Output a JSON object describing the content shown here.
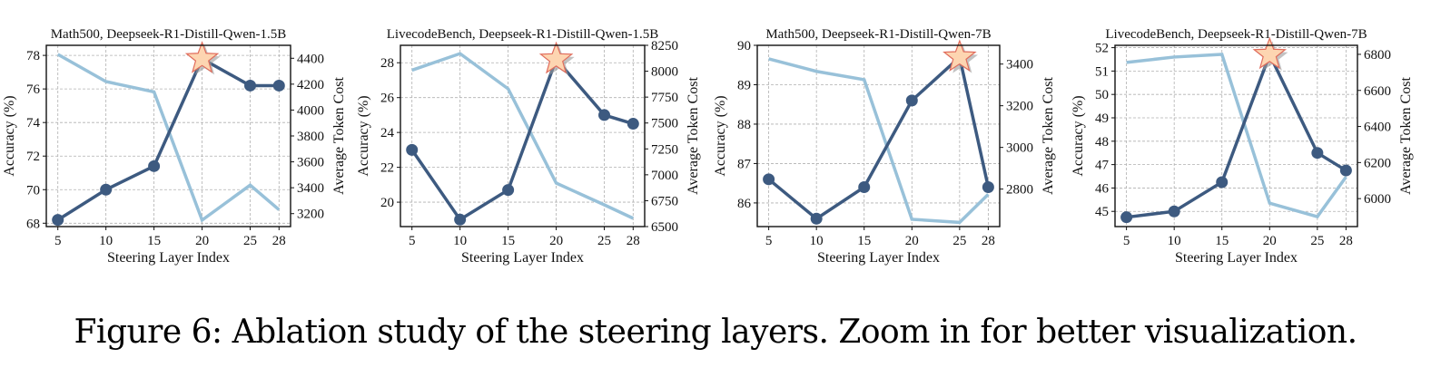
{
  "caption": "Figure 6: Ablation study of the steering layers. Zoom in for better visualization.",
  "colors": {
    "accuracy_line": "#3d5a80",
    "token_line": "#98c1d9",
    "star_fill": "#fdd5b1",
    "star_stroke": "#e06c5c",
    "grid": "#b0b0b0"
  },
  "chart_data": [
    {
      "type": "line",
      "title": "Math500, Deepseek-R1-Distill-Qwen-1.5B",
      "xlabel": "Steering Layer Index",
      "ylabel": "Accuracy (%)",
      "y2label": "Average Token Cost",
      "x": [
        5,
        10,
        15,
        20,
        25,
        28
      ],
      "xticks": [
        "5",
        "10",
        "15",
        "20",
        "25",
        "28"
      ],
      "series": [
        {
          "name": "Accuracy",
          "axis": "left",
          "values": [
            68.2,
            70.0,
            71.4,
            77.8,
            76.2,
            76.2
          ]
        },
        {
          "name": "Average Token Cost",
          "axis": "right",
          "values": [
            4430,
            4220,
            4140,
            3150,
            3420,
            3230
          ]
        }
      ],
      "ylim": [
        67.8,
        78.6
      ],
      "yticks": [
        68,
        70,
        72,
        74,
        76,
        78
      ],
      "y2lim": [
        3100,
        4500
      ],
      "y2ticks": [
        3200,
        3400,
        3600,
        3800,
        4000,
        4200,
        4400
      ],
      "best_index": 3,
      "grid": true
    },
    {
      "type": "line",
      "title": "LivecodeBench, Deepseek-R1-Distill-Qwen-1.5B",
      "xlabel": "Steering Layer Index",
      "ylabel": "Accuracy (%)",
      "y2label": "Average Token Cost",
      "x": [
        5,
        10,
        15,
        20,
        25,
        28
      ],
      "xticks": [
        "5",
        "10",
        "15",
        "20",
        "25",
        "28"
      ],
      "series": [
        {
          "name": "Accuracy",
          "axis": "left",
          "values": [
            23.0,
            19.0,
            20.7,
            28.2,
            25.0,
            24.5
          ]
        },
        {
          "name": "Average Token Cost",
          "axis": "right",
          "values": [
            8010,
            8170,
            7830,
            6920,
            6710,
            6580
          ]
        }
      ],
      "ylim": [
        18.6,
        29.0
      ],
      "yticks": [
        20,
        22,
        24,
        26,
        28
      ],
      "y2lim": [
        6500,
        8250
      ],
      "y2ticks": [
        6500,
        6750,
        7000,
        7250,
        7500,
        7750,
        8000,
        8250
      ],
      "best_index": 3,
      "grid": true
    },
    {
      "type": "line",
      "title": "Math500, Deepseek-R1-Distill-Qwen-7B",
      "xlabel": "Steering Layer Index",
      "ylabel": "Accuracy (%)",
      "y2label": "Average Token Cost",
      "x": [
        5,
        10,
        15,
        20,
        25,
        28
      ],
      "xticks": [
        "5",
        "10",
        "15",
        "20",
        "25",
        "28"
      ],
      "series": [
        {
          "name": "Accuracy",
          "axis": "left",
          "values": [
            86.6,
            85.6,
            86.4,
            88.6,
            89.7,
            86.4
          ]
        },
        {
          "name": "Average Token Cost",
          "axis": "right",
          "values": [
            3425,
            3365,
            3325,
            2655,
            2640,
            2775
          ]
        }
      ],
      "ylim": [
        85.4,
        90.0
      ],
      "yticks": [
        86,
        87,
        88,
        89,
        90
      ],
      "y2lim": [
        2620,
        3490
      ],
      "y2ticks": [
        2800,
        3000,
        3200,
        3400
      ],
      "best_index": 4,
      "grid": true
    },
    {
      "type": "line",
      "title": "LivecodeBench, Deepseek-R1-Distill-Qwen-7B",
      "xlabel": "Steering Layer Index",
      "ylabel": "Accuracy (%)",
      "y2label": "Average Token Cost",
      "x": [
        5,
        10,
        15,
        20,
        25,
        28
      ],
      "xticks": [
        "5",
        "10",
        "15",
        "20",
        "25",
        "28"
      ],
      "series": [
        {
          "name": "Accuracy",
          "axis": "left",
          "values": [
            44.75,
            45.0,
            46.25,
            51.7,
            47.5,
            46.75
          ]
        },
        {
          "name": "Average Token Cost",
          "axis": "right",
          "values": [
            6755,
            6785,
            6800,
            5975,
            5900,
            6120
          ]
        }
      ],
      "ylim": [
        44.35,
        52.1
      ],
      "yticks": [
        45,
        46,
        47,
        48,
        49,
        50,
        51,
        52
      ],
      "y2lim": [
        5845,
        6850
      ],
      "y2ticks": [
        6000,
        6200,
        6400,
        6600,
        6800
      ],
      "best_index": 3,
      "grid": true
    }
  ]
}
